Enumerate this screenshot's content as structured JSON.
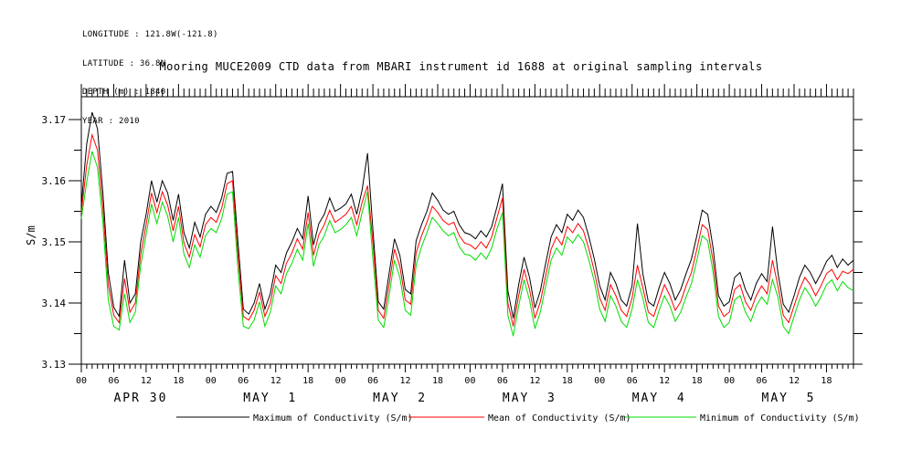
{
  "header": {
    "lines": [
      "LONGITUDE : 121.8W(-121.8)",
      "LATITUDE : 36.8N",
      "DEPTH (m) : 1840",
      "YEAR : 2010"
    ]
  },
  "chart_data": {
    "type": "line",
    "title": "Mooring MUCE2009 CTD data from MBARI instrument id 1688 at original sampling intervals",
    "xlabel": "",
    "ylabel": "S/m",
    "ylim": [
      3.13,
      3.1737
    ],
    "y_major_ticks": [
      3.13,
      3.14,
      3.15,
      3.16,
      3.17
    ],
    "y_tick_labels": [
      "3.13",
      "3.14",
      "3.15",
      "3.16",
      "3.17"
    ],
    "y_minor_step": 0.005,
    "x_unit_hours_from": "APR 30 2010 00:00",
    "xlim": [
      0,
      143
    ],
    "x_major_step_hours": 6,
    "x_minor_step_hours": 1,
    "hour_tick_labels": [
      "00",
      "06",
      "12",
      "18"
    ],
    "day_labels": [
      {
        "label": "APR 30",
        "start_hour": 6
      },
      {
        "label": "MAY  1",
        "start_hour": 30
      },
      {
        "label": "MAY  2",
        "start_hour": 54
      },
      {
        "label": "MAY  3",
        "start_hour": 78
      },
      {
        "label": "MAY  4",
        "start_hour": 102
      },
      {
        "label": "MAY  5",
        "start_hour": 126
      }
    ],
    "grid": false,
    "legend_position": "bottom",
    "series": [
      {
        "name": "Maximum of Conductivity (S/m)",
        "color": "#000000",
        "values": [
          3.156,
          3.166,
          3.1712,
          3.1685,
          3.158,
          3.145,
          3.1393,
          3.1378,
          3.147,
          3.14,
          3.1415,
          3.15,
          3.1545,
          3.16,
          3.1565,
          3.16,
          3.158,
          3.1535,
          3.1578,
          3.1515,
          3.149,
          3.1532,
          3.1508,
          3.1545,
          3.1558,
          3.1548,
          3.1572,
          3.1612,
          3.1615,
          3.15,
          3.139,
          3.1382,
          3.14,
          3.1432,
          3.139,
          3.1415,
          3.1462,
          3.145,
          3.1482,
          3.15,
          3.1522,
          3.1505,
          3.1575,
          3.1495,
          3.153,
          3.1545,
          3.1572,
          3.155,
          3.1555,
          3.1562,
          3.1578,
          3.1545,
          3.1585,
          3.1645,
          3.152,
          3.1402,
          3.139,
          3.1448,
          3.1505,
          3.1478,
          3.1422,
          3.1415,
          3.1502,
          3.1528,
          3.155,
          3.158,
          3.1568,
          3.1552,
          3.1545,
          3.155,
          3.1528,
          3.1515,
          3.1512,
          3.1505,
          3.1518,
          3.1508,
          3.1525,
          3.1558,
          3.1595,
          3.142,
          3.1375,
          3.143,
          3.1475,
          3.1442,
          3.1392,
          3.142,
          3.1465,
          3.1508,
          3.1528,
          3.1515,
          3.1545,
          3.1535,
          3.1552,
          3.154,
          3.1508,
          3.1472,
          3.1428,
          3.1405,
          3.145,
          3.1432,
          3.1405,
          3.1395,
          3.1428,
          3.153,
          3.1448,
          3.1402,
          3.1395,
          3.1425,
          3.145,
          3.1432,
          3.1405,
          3.1422,
          3.1448,
          3.1472,
          3.151,
          3.1552,
          3.1545,
          3.149,
          3.1412,
          3.1395,
          3.1402,
          3.1442,
          3.145,
          3.1422,
          3.1405,
          3.1432,
          3.1448,
          3.1435,
          3.1525,
          3.145,
          3.1398,
          3.1385,
          3.1412,
          3.1442,
          3.1462,
          3.145,
          3.1432,
          3.1448,
          3.1468,
          3.1478,
          3.1458,
          3.1472,
          3.1462,
          3.147
        ]
      },
      {
        "name": "Mean of Conductivity (S/m)",
        "color": "#ff0000",
        "values": [
          3.1548,
          3.1625,
          3.1675,
          3.165,
          3.1555,
          3.143,
          3.138,
          3.1368,
          3.144,
          3.1385,
          3.14,
          3.148,
          3.1528,
          3.158,
          3.1548,
          3.1582,
          3.156,
          3.1518,
          3.1558,
          3.1498,
          3.1475,
          3.1512,
          3.1492,
          3.1528,
          3.154,
          3.1532,
          3.1555,
          3.1595,
          3.16,
          3.1478,
          3.1378,
          3.1372,
          3.1388,
          3.1418,
          3.1378,
          3.14,
          3.1445,
          3.1432,
          3.1465,
          3.1482,
          3.1505,
          3.1488,
          3.1548,
          3.1478,
          3.1512,
          3.1528,
          3.1552,
          3.1532,
          3.1538,
          3.1545,
          3.1558,
          3.1528,
          3.1565,
          3.1592,
          3.1498,
          3.1388,
          3.1375,
          3.143,
          3.1488,
          3.146,
          3.1405,
          3.1398,
          3.1482,
          3.151,
          3.1532,
          3.1558,
          3.1548,
          3.1535,
          3.1528,
          3.1532,
          3.151,
          3.1498,
          3.1495,
          3.1488,
          3.15,
          3.149,
          3.1508,
          3.154,
          3.1572,
          3.14,
          3.1362,
          3.1412,
          3.1455,
          3.1422,
          3.1375,
          3.1402,
          3.1445,
          3.1488,
          3.1508,
          3.1495,
          3.1525,
          3.1515,
          3.153,
          3.1518,
          3.1488,
          3.1452,
          3.1408,
          3.1388,
          3.143,
          3.1412,
          3.1388,
          3.1378,
          3.1408,
          3.1462,
          3.1425,
          3.1385,
          3.1378,
          3.1405,
          3.143,
          3.1412,
          3.1388,
          3.1402,
          3.1428,
          3.145,
          3.1488,
          3.1528,
          3.152,
          3.1468,
          3.1395,
          3.1378,
          3.1385,
          3.1422,
          3.143,
          3.1402,
          3.1388,
          3.1412,
          3.1428,
          3.1415,
          3.147,
          3.1428,
          3.138,
          3.1368,
          3.1395,
          3.1422,
          3.1442,
          3.143,
          3.1412,
          3.1428,
          3.1448,
          3.1455,
          3.1438,
          3.1452,
          3.1448,
          3.1455
        ]
      },
      {
        "name": "Minimum of Conductivity (S/m)",
        "color": "#00dd00",
        "values": [
          3.1538,
          3.1598,
          3.1648,
          3.1622,
          3.1532,
          3.1405,
          3.1362,
          3.1356,
          3.1415,
          3.1368,
          3.1385,
          3.1462,
          3.1512,
          3.1562,
          3.153,
          3.1565,
          3.1542,
          3.15,
          3.154,
          3.148,
          3.1458,
          3.1495,
          3.1475,
          3.151,
          3.1522,
          3.1515,
          3.1538,
          3.1578,
          3.1582,
          3.1455,
          3.1362,
          3.1358,
          3.1372,
          3.1402,
          3.1362,
          3.1385,
          3.1428,
          3.1415,
          3.1448,
          3.1465,
          3.1488,
          3.147,
          3.153,
          3.146,
          3.1495,
          3.151,
          3.1535,
          3.1515,
          3.152,
          3.1528,
          3.154,
          3.151,
          3.1548,
          3.1582,
          3.1472,
          3.1372,
          3.136,
          3.1412,
          3.147,
          3.1442,
          3.1388,
          3.138,
          3.1462,
          3.1492,
          3.1515,
          3.154,
          3.153,
          3.1518,
          3.151,
          3.1515,
          3.1492,
          3.148,
          3.1478,
          3.147,
          3.1482,
          3.1472,
          3.149,
          3.1522,
          3.1548,
          3.138,
          3.1346,
          3.1395,
          3.1438,
          3.1405,
          3.1358,
          3.1385,
          3.1428,
          3.147,
          3.149,
          3.1478,
          3.1508,
          3.1498,
          3.1512,
          3.15,
          3.147,
          3.1435,
          3.139,
          3.137,
          3.1412,
          3.1395,
          3.137,
          3.136,
          3.139,
          3.1438,
          3.1408,
          3.1368,
          3.136,
          3.1388,
          3.1412,
          3.1395,
          3.137,
          3.1385,
          3.141,
          3.1432,
          3.147,
          3.151,
          3.1502,
          3.145,
          3.1378,
          3.136,
          3.1368,
          3.1405,
          3.1412,
          3.1385,
          3.137,
          3.1395,
          3.141,
          3.1398,
          3.1438,
          3.141,
          3.1362,
          3.135,
          3.1378,
          3.1405,
          3.1425,
          3.1412,
          3.1395,
          3.141,
          3.143,
          3.1438,
          3.142,
          3.1435,
          3.1425,
          3.142
        ]
      }
    ]
  }
}
